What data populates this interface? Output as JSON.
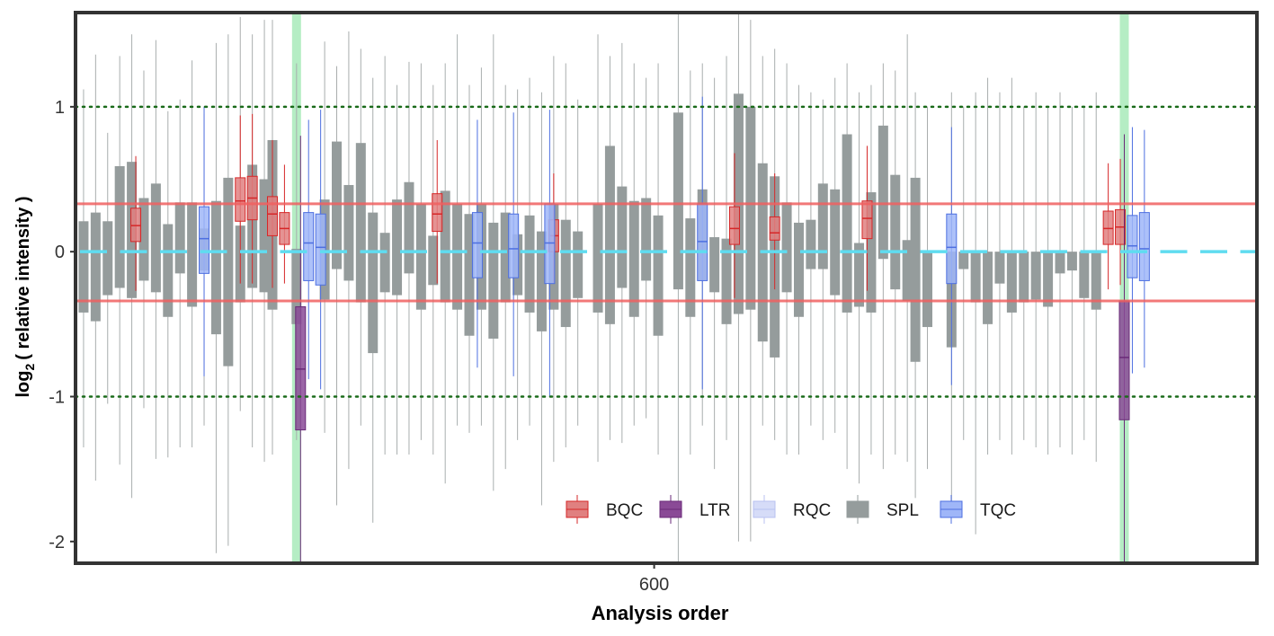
{
  "chart_data": {
    "type": "box",
    "xlabel": "Analysis order",
    "ylabel": {
      "base": "log",
      "subscript": "2",
      "rest": "( relative intensity )"
    },
    "xticks": [
      600
    ],
    "yticks": [
      1,
      0,
      -1,
      -2
    ],
    "ytick_labels": [
      "1",
      "0",
      "-1",
      "-2"
    ],
    "xtick_labels": [
      "600"
    ],
    "xlim": [
      528,
      675
    ],
    "ylim": [
      -2.15,
      1.65
    ],
    "reference_lines": {
      "dotted": [
        1,
        -1
      ],
      "red_limits": [
        0.33,
        -0.34
      ],
      "median_segments": 0
    },
    "batch_markers_x": [
      555.5,
      658.5
    ],
    "legend": {
      "position": "bottom-center",
      "items": [
        {
          "label": "BQC",
          "fill": "#e08080",
          "stroke": "#d62728"
        },
        {
          "label": "LTR",
          "fill": "#8a4a96",
          "stroke": "#6a2a78"
        },
        {
          "label": "RQC",
          "fill": "#d6dcf8",
          "stroke": "#b8c2f0"
        },
        {
          "label": "SPL",
          "fill": "#959c9c",
          "stroke": "#959c9c"
        },
        {
          "label": "TQC",
          "fill": "#9fb6f8",
          "stroke": "#4d6fe0"
        }
      ]
    },
    "series": [
      {
        "name": "SPL",
        "x": [
          529,
          530.5,
          532,
          533.5,
          535,
          536.5,
          538,
          539.5,
          541,
          542.5,
          544,
          545.5,
          547,
          548.5,
          550,
          551.5,
          552.5,
          555.5,
          559,
          560.5,
          562,
          563.5,
          565,
          566.5,
          568,
          569.5,
          571,
          572.5,
          574,
          575.5,
          577,
          578.5,
          580,
          581.5,
          583,
          584.5,
          586,
          587.5,
          589,
          590.5,
          593,
          594.5,
          596,
          597.5,
          599,
          600.5,
          603,
          604.5,
          606,
          607.5,
          609,
          610.5,
          612,
          613.5,
          615,
          616.5,
          618,
          619.5,
          621,
          622.5,
          624,
          625.5,
          627,
          628.5,
          630,
          631.5,
          632.5,
          634,
          637,
          638.5,
          640,
          641.5,
          643,
          644.5,
          646,
          647.5,
          649,
          650.5,
          652,
          653.5,
          655
        ],
        "q1": [
          -0.42,
          -0.48,
          -0.3,
          -0.25,
          -0.32,
          -0.2,
          -0.28,
          -0.45,
          -0.15,
          -0.38,
          -0.13,
          -0.57,
          -0.79,
          -0.35,
          -0.25,
          -0.28,
          -0.4,
          -0.5,
          -0.33,
          -0.12,
          -0.2,
          -0.35,
          -0.7,
          -0.28,
          -0.3,
          -0.15,
          -0.4,
          -0.23,
          -0.35,
          -0.4,
          -0.58,
          -0.4,
          -0.6,
          -0.35,
          -0.3,
          -0.42,
          -0.55,
          -0.4,
          -0.52,
          -0.32,
          -0.42,
          -0.5,
          -0.25,
          -0.45,
          -0.2,
          -0.58,
          -0.26,
          -0.45,
          -0.2,
          -0.28,
          -0.5,
          -0.43,
          -0.4,
          -0.62,
          -0.73,
          -0.28,
          -0.45,
          -0.12,
          -0.12,
          -0.3,
          -0.42,
          -0.38,
          -0.42,
          -0.05,
          -0.26,
          -0.34,
          -0.76,
          -0.52,
          -0.66,
          -0.12,
          -0.35,
          -0.5,
          -0.22,
          -0.42,
          -0.35,
          -0.33,
          -0.38,
          -0.15,
          -0.13,
          -0.32,
          -0.4
        ],
        "q3": [
          0.21,
          0.27,
          0.21,
          0.59,
          0.62,
          0.37,
          0.47,
          0.19,
          0.34,
          0.34,
          0.16,
          0.35,
          0.51,
          0.18,
          0.6,
          0.5,
          0.77,
          0.02,
          0.36,
          0.76,
          0.46,
          0.75,
          0.27,
          0.13,
          0.36,
          0.48,
          0.33,
          0.11,
          0.42,
          0.33,
          0.26,
          0.33,
          0.2,
          0.27,
          0.12,
          0.25,
          0.14,
          0.33,
          0.22,
          0.14,
          0.33,
          0.73,
          0.45,
          0.35,
          0.37,
          0.25,
          0.96,
          0.23,
          0.43,
          0.1,
          0.09,
          1.09,
          1.0,
          0.61,
          0.52,
          0.34,
          0.2,
          0.22,
          0.47,
          0.43,
          0.81,
          0.06,
          0.41,
          0.87,
          0.53,
          0.08,
          0.51,
          0.0,
          0.0,
          0.0,
          0.0,
          0.0,
          0.0,
          0.0,
          0.0,
          0.0,
          0.0,
          0.0,
          0.0,
          0.0,
          0.0
        ],
        "lo": [
          -1.35,
          -1.58,
          -1.05,
          -1.47,
          -1.7,
          -1.08,
          -1.43,
          -1.42,
          -1.35,
          -1.35,
          -1.2,
          -2.08,
          -2.03,
          -1.1,
          -1.35,
          -1.45,
          -1.4,
          -1.3,
          -1.25,
          -1.75,
          -1.5,
          -1.2,
          -1.87,
          -1.4,
          -1.4,
          -1.4,
          -1.3,
          -1.4,
          -1.6,
          -1.2,
          -1.25,
          -1.2,
          -1.65,
          -1.5,
          -1.3,
          -1.2,
          -1.75,
          -1.45,
          -1.35,
          -1.2,
          -1.45,
          -1.3,
          -1.32,
          -1.2,
          -1.15,
          -1.4,
          -2.15,
          -1.4,
          -1.2,
          -1.5,
          -1.3,
          -2.0,
          -2.0,
          -1.2,
          -1.3,
          -1.4,
          -1.4,
          -1.2,
          -1.3,
          -1.25,
          -1.5,
          -1.6,
          -1.4,
          -1.5,
          -1.4,
          -1.45,
          -1.7,
          -1.5,
          -1.8,
          -1.3,
          -1.95,
          -1.4,
          -1.3,
          -1.4,
          -1.3,
          -1.35,
          -1.4,
          -1.35,
          -1.4,
          -1.3,
          -1.45
        ],
        "hi": [
          1.12,
          1.36,
          0.82,
          1.35,
          1.5,
          1.25,
          1.46,
          0.97,
          1.05,
          1.32,
          0.95,
          1.44,
          1.5,
          1.62,
          1.5,
          1.6,
          1.6,
          1.3,
          1.45,
          1.28,
          1.52,
          1.4,
          1.2,
          1.35,
          1.15,
          1.31,
          1.3,
          1.15,
          1.3,
          1.5,
          1.15,
          1.27,
          1.5,
          1.15,
          1.12,
          1.2,
          1.1,
          1.35,
          1.3,
          1.05,
          1.5,
          1.35,
          1.44,
          1.3,
          1.2,
          1.3,
          1.65,
          1.25,
          1.3,
          1.2,
          1.35,
          1.65,
          1.6,
          1.35,
          1.4,
          1.3,
          1.15,
          1.1,
          1.05,
          1.2,
          1.3,
          1.1,
          1.15,
          1.3,
          1.25,
          1.5,
          1.1,
          1.0,
          1.1,
          1.0,
          1.1,
          1.2,
          1.1,
          1.2,
          1.0,
          1.1,
          1.0,
          1.1,
          1.0,
          1.0,
          1.1
        ]
      },
      {
        "name": "BQC",
        "x": [
          535.5,
          548.5,
          550,
          552.5,
          554,
          573,
          587.5,
          610,
          615,
          626.5,
          656.5,
          658
        ],
        "q1": [
          0.07,
          0.21,
          0.22,
          0.11,
          0.05,
          0.14,
          0.0,
          0.05,
          0.08,
          0.09,
          0.05,
          0.05
        ],
        "median": [
          0.18,
          0.35,
          0.37,
          0.26,
          0.16,
          0.26,
          0.11,
          0.16,
          0.13,
          0.23,
          0.16,
          0.17
        ],
        "q3": [
          0.3,
          0.51,
          0.52,
          0.38,
          0.27,
          0.4,
          0.22,
          0.31,
          0.24,
          0.35,
          0.28,
          0.29
        ],
        "lo": [
          -0.27,
          -0.22,
          -0.22,
          -0.25,
          -0.22,
          -0.22,
          -0.22,
          -0.32,
          -0.26,
          -0.27,
          -0.26,
          -0.23
        ],
        "hi": [
          0.66,
          0.94,
          0.95,
          0.77,
          0.6,
          0.77,
          0.54,
          0.68,
          0.54,
          0.73,
          0.61,
          0.64
        ]
      },
      {
        "name": "TQC",
        "x": [
          544,
          557,
          558.5,
          578,
          587,
          606,
          637,
          659.5,
          661,
          582.5
        ],
        "q1": [
          -0.15,
          -0.2,
          -0.23,
          -0.18,
          -0.22,
          -0.2,
          -0.22,
          -0.18,
          -0.2,
          -0.18
        ],
        "median": [
          0.09,
          0.06,
          0.03,
          0.06,
          0.06,
          0.07,
          0.03,
          0.04,
          0.02,
          0.02
        ],
        "q3": [
          0.31,
          0.27,
          0.26,
          0.27,
          0.33,
          0.33,
          0.26,
          0.25,
          0.27,
          0.26
        ],
        "lo": [
          -0.86,
          -0.88,
          -0.95,
          -0.8,
          -1.0,
          -0.95,
          -0.92,
          -0.84,
          -0.8,
          -0.86
        ],
        "hi": [
          1.0,
          0.91,
          0.98,
          0.91,
          0.98,
          1.07,
          0.86,
          0.86,
          0.84,
          0.96
        ]
      },
      {
        "name": "LTR",
        "x": [
          556,
          658.5
        ],
        "q1": [
          -1.23,
          -1.16
        ],
        "median": [
          -0.81,
          -0.73
        ],
        "q3": [
          -0.38,
          -0.34
        ],
        "lo": [
          -2.15,
          -2.15
        ],
        "hi": [
          0.8,
          0.81
        ]
      }
    ]
  }
}
